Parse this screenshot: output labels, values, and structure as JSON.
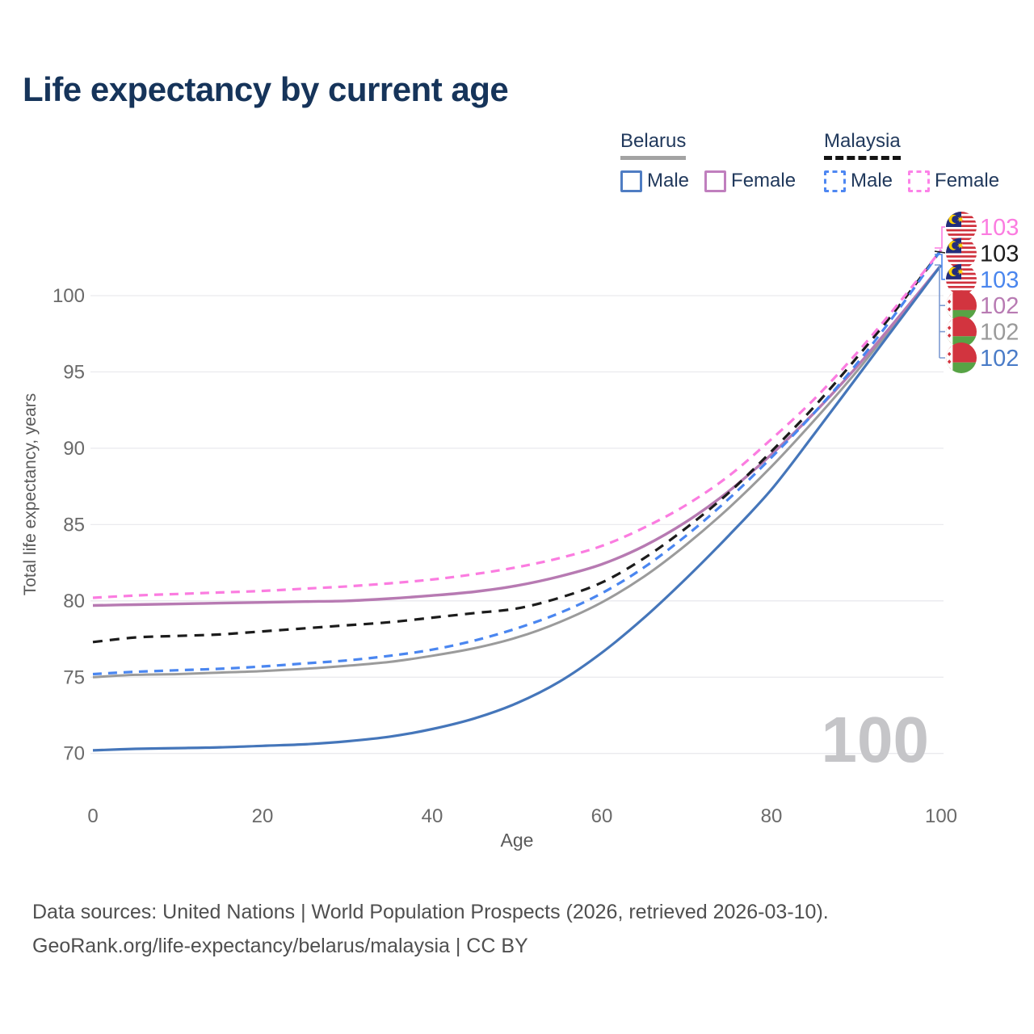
{
  "title": "Life expectancy by current age",
  "legend": {
    "belarus": {
      "title": "Belarus",
      "male": "Male",
      "female": "Female",
      "male_color": "#4f7dc3",
      "female_color": "#c07fbe",
      "line_style": "solid",
      "header_line_color": "#a3a3a3"
    },
    "malaysia": {
      "title": "Malaysia",
      "male": "Male",
      "female": "Female",
      "male_color": "#4e87f2",
      "female_color": "#fc82e8",
      "line_style": "dashed",
      "header_line_color": "#141414"
    }
  },
  "chart_data": {
    "type": "line",
    "title": "Life expectancy by current age",
    "xlabel": "Age",
    "ylabel": "Total life expectancy, years",
    "x_ticks": [
      0,
      20,
      40,
      60,
      80,
      100
    ],
    "y_ticks": [
      70,
      75,
      80,
      85,
      90,
      95,
      100
    ],
    "xlim": [
      0,
      100
    ],
    "ylim": [
      69,
      104
    ],
    "grid": "horizontal-only",
    "legend_position": "top-right",
    "age_indicator": "100",
    "x": [
      0,
      5,
      10,
      15,
      20,
      25,
      30,
      35,
      40,
      45,
      50,
      55,
      60,
      65,
      70,
      75,
      80,
      85,
      90,
      95,
      100
    ],
    "series": [
      {
        "name": "Belarus Total",
        "country": "Belarus",
        "sex": "Both",
        "color": "#9b9b9b",
        "dash": null,
        "width": 3,
        "end_label": "102",
        "end_label_color": "#9a9a9a",
        "flag": "belarus-flag-icon",
        "label_row": 4,
        "values": [
          75.0,
          75.15,
          75.2,
          75.3,
          75.4,
          75.55,
          75.75,
          76.0,
          76.4,
          76.9,
          77.6,
          78.6,
          79.9,
          81.6,
          83.7,
          86.1,
          88.8,
          91.8,
          95.0,
          98.5,
          102
        ]
      },
      {
        "name": "Belarus Female",
        "country": "Belarus",
        "sex": "Female",
        "color": "#b77ab2",
        "dash": null,
        "width": 3.4,
        "end_label": "102",
        "end_label_color": "#b87bb3",
        "flag": "belarus-flag-icon",
        "label_row": 3,
        "values": [
          79.7,
          79.75,
          79.8,
          79.85,
          79.9,
          79.95,
          80.0,
          80.15,
          80.35,
          80.6,
          81.0,
          81.6,
          82.4,
          83.6,
          85.2,
          87.2,
          89.6,
          92.3,
          95.3,
          98.6,
          102
        ]
      },
      {
        "name": "Belarus Male",
        "country": "Belarus",
        "sex": "Male",
        "color": "#4576ba",
        "dash": null,
        "width": 3.2,
        "end_label": "102",
        "end_label_color": "#4a7cc8",
        "flag": "belarus-flag-icon",
        "label_row": 5,
        "values": [
          70.2,
          70.3,
          70.35,
          70.4,
          70.5,
          70.6,
          70.8,
          71.1,
          71.6,
          72.3,
          73.3,
          74.7,
          76.6,
          78.9,
          81.5,
          84.3,
          87.3,
          90.9,
          94.6,
          98.3,
          102
        ]
      },
      {
        "name": "Malaysia Total",
        "country": "Malaysia",
        "sex": "Both",
        "color": "#1c1c1c",
        "dash": "12 9",
        "width": 3.2,
        "end_label": "103",
        "end_label_color": "#1c1c1c",
        "flag": "malaysia-flag-icon",
        "label_row": 1,
        "values": [
          77.3,
          77.6,
          77.7,
          77.8,
          78.0,
          78.2,
          78.4,
          78.6,
          78.9,
          79.2,
          79.5,
          80.2,
          81.2,
          82.8,
          84.8,
          87.1,
          89.8,
          92.7,
          95.9,
          99.3,
          103
        ]
      },
      {
        "name": "Malaysia Male",
        "country": "Malaysia",
        "sex": "Male",
        "color": "#4a86f0",
        "dash": "11 8",
        "width": 3.2,
        "end_label": "103",
        "end_label_color": "#4a86ee",
        "flag": "malaysia-flag-icon",
        "label_row": 2,
        "values": [
          75.2,
          75.35,
          75.45,
          75.55,
          75.7,
          75.9,
          76.1,
          76.4,
          76.8,
          77.4,
          78.2,
          79.2,
          80.5,
          82.2,
          84.3,
          86.7,
          89.4,
          92.3,
          95.5,
          99.1,
          103
        ]
      },
      {
        "name": "Malaysia Female",
        "country": "Malaysia",
        "sex": "Female",
        "color": "#fb7ce0",
        "dash": "11 8",
        "width": 3.2,
        "end_label": "103",
        "end_label_color": "#fb7ce0",
        "flag": "malaysia-flag-icon",
        "label_row": 0,
        "values": [
          80.2,
          80.35,
          80.45,
          80.55,
          80.65,
          80.8,
          80.95,
          81.15,
          81.4,
          81.75,
          82.2,
          82.8,
          83.6,
          84.8,
          86.3,
          88.2,
          90.6,
          93.2,
          96.2,
          99.5,
          103
        ]
      }
    ]
  },
  "footer": {
    "line1": "Data sources: United Nations | World Population Prospects (2026, retrieved 2026-03-10).",
    "line2": "GeoRank.org/life-expectancy/belarus/malaysia | CC BY"
  }
}
